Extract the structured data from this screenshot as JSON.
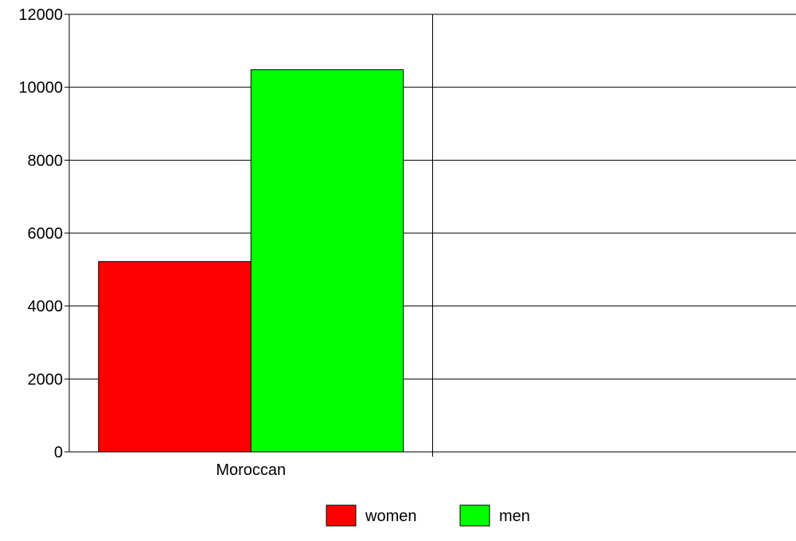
{
  "chart_data": {
    "type": "bar",
    "categories": [
      "Moroccan",
      ""
    ],
    "series": [
      {
        "name": "women",
        "color": "#ff0000",
        "values": [
          5220,
          null
        ]
      },
      {
        "name": "men",
        "color": "#00ff00",
        "values": [
          10480,
          null
        ]
      }
    ],
    "ylim": [
      0,
      12000
    ],
    "yticks": [
      0,
      2000,
      4000,
      6000,
      8000,
      10000,
      12000
    ],
    "grid": true,
    "legend_position": "bottom-center",
    "title": "",
    "xlabel": "",
    "ylabel": ""
  }
}
